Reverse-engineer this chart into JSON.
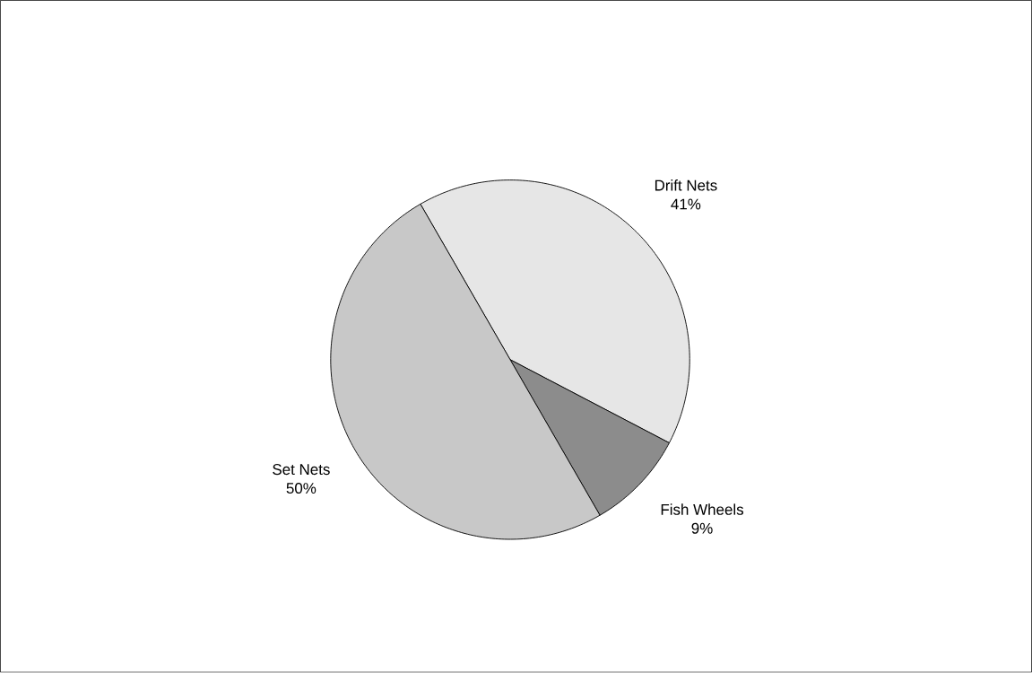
{
  "chart_data": {
    "type": "pie",
    "categories": [
      "Drift Nets",
      "Fish Wheels",
      "Set Nets"
    ],
    "values": [
      41,
      9,
      50
    ],
    "value_labels": [
      "41%",
      "9%",
      "50%"
    ],
    "colors": [
      "#e6e6e6",
      "#8c8c8c",
      "#c8c8c8"
    ],
    "legend": false
  }
}
